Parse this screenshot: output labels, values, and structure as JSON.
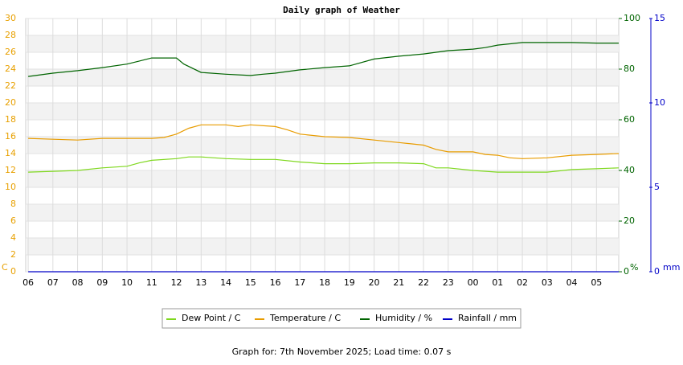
{
  "chart_data": {
    "type": "line",
    "title": "Daily graph of Weather",
    "footer": "Graph for: 7th November 2025; Load time: 0.07 s",
    "y_label": "C",
    "y2_label": "%",
    "y3_label": "mm",
    "xlim": [
      -0.1,
      23.9
    ],
    "xticks": [
      {
        "value": 0,
        "label": "06"
      },
      {
        "value": 1,
        "label": "07"
      },
      {
        "value": 2,
        "label": "08"
      },
      {
        "value": 3,
        "label": "09"
      },
      {
        "value": 4,
        "label": "10"
      },
      {
        "value": 5,
        "label": "11"
      },
      {
        "value": 6,
        "label": "12"
      },
      {
        "value": 7,
        "label": "13"
      },
      {
        "value": 8,
        "label": "14"
      },
      {
        "value": 9,
        "label": "15"
      },
      {
        "value": 10,
        "label": "16"
      },
      {
        "value": 11,
        "label": "17"
      },
      {
        "value": 12,
        "label": "18"
      },
      {
        "value": 13,
        "label": "19"
      },
      {
        "value": 14,
        "label": "20"
      },
      {
        "value": 15,
        "label": "21"
      },
      {
        "value": 16,
        "label": "22"
      },
      {
        "value": 17,
        "label": "23"
      },
      {
        "value": 18,
        "label": "00"
      },
      {
        "value": 19,
        "label": "01"
      },
      {
        "value": 20,
        "label": "02"
      },
      {
        "value": 21,
        "label": "03"
      },
      {
        "value": 22,
        "label": "04"
      },
      {
        "value": 23,
        "label": "05"
      }
    ],
    "ylim": [
      0,
      30
    ],
    "yticks": [
      0,
      2,
      4,
      6,
      8,
      10,
      12,
      14,
      16,
      18,
      20,
      22,
      24,
      26,
      28,
      30
    ],
    "y2lim": [
      0,
      100
    ],
    "y2ticks": [
      0,
      20,
      40,
      60,
      80,
      100
    ],
    "y3lim": [
      0,
      15
    ],
    "y3ticks": [
      0,
      5,
      10,
      15
    ],
    "grid": true,
    "legend": "bottom",
    "series": [
      {
        "name": "Dew Point / C",
        "color": "#7fd81e",
        "x": [
          0,
          1,
          2,
          3,
          4,
          4.5,
          5,
          6,
          6.5,
          7,
          8,
          9,
          10,
          11,
          12,
          13,
          14,
          15,
          16,
          16.5,
          17,
          18,
          19,
          20,
          21,
          22,
          23,
          23.9
        ],
        "values": [
          11.8,
          11.9,
          12.0,
          12.3,
          12.5,
          12.9,
          13.2,
          13.4,
          13.6,
          13.6,
          13.4,
          13.3,
          13.3,
          13.0,
          12.8,
          12.8,
          12.9,
          12.9,
          12.8,
          12.3,
          12.3,
          12.0,
          11.8,
          11.8,
          11.8,
          12.1,
          12.2,
          12.3
        ]
      },
      {
        "name": "Temperature / C",
        "color": "#e89c00",
        "x": [
          0,
          1,
          2,
          3,
          4,
          5,
          5.5,
          6,
          6.5,
          7,
          8,
          8.5,
          9,
          10,
          10.5,
          11,
          12,
          13,
          14,
          15,
          16,
          16.5,
          17,
          18,
          18.5,
          19,
          19.5,
          20,
          21,
          22,
          23,
          23.9
        ],
        "values": [
          15.8,
          15.7,
          15.6,
          15.8,
          15.8,
          15.8,
          15.9,
          16.3,
          17.0,
          17.4,
          17.4,
          17.2,
          17.4,
          17.2,
          16.8,
          16.3,
          16.0,
          15.9,
          15.6,
          15.3,
          15.0,
          14.5,
          14.2,
          14.2,
          13.9,
          13.8,
          13.5,
          13.4,
          13.5,
          13.8,
          13.9,
          14.0
        ]
      },
      {
        "name": "Humidity / %",
        "color": "#006400",
        "axis": "y2",
        "x": [
          0,
          1,
          2,
          3,
          4,
          4.5,
          5,
          6,
          6.3,
          7,
          8,
          9,
          9.5,
          10,
          11,
          12,
          13,
          14,
          15,
          16,
          17,
          18,
          18.5,
          19,
          20,
          21,
          22,
          23,
          23.9
        ],
        "values": [
          77.1,
          78.4,
          79.4,
          80.6,
          82.0,
          83.2,
          84.4,
          84.4,
          82.0,
          78.7,
          78.0,
          77.5,
          78.0,
          78.4,
          79.7,
          80.6,
          81.3,
          84.0,
          85.1,
          86.0,
          87.3,
          87.9,
          88.5,
          89.5,
          90.5,
          90.5,
          90.5,
          90.3,
          90.3
        ]
      },
      {
        "name": "Rainfall / mm",
        "color": "#0000c8",
        "axis": "y3",
        "x": [
          0,
          23.9
        ],
        "values": [
          0,
          0
        ]
      }
    ]
  }
}
